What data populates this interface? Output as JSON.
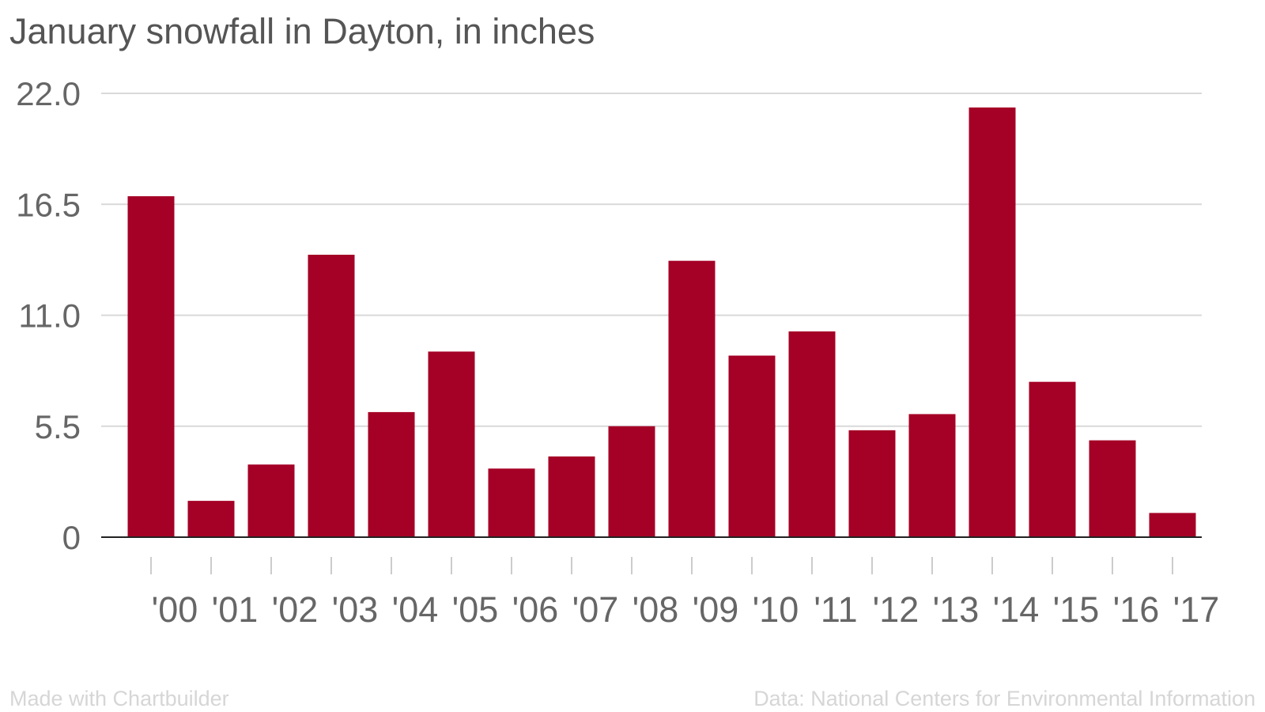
{
  "chart_data": {
    "type": "bar",
    "title": "January snowfall in Dayton, in inches",
    "xlabel": "",
    "ylabel": "",
    "categories": [
      "'00",
      "'01",
      "'02",
      "'03",
      "'04",
      "'05",
      "'06",
      "'07",
      "'08",
      "'09",
      "'10",
      "'11",
      "'12",
      "'13",
      "'14",
      "'15",
      "'16",
      "'17"
    ],
    "values": [
      16.9,
      1.8,
      3.6,
      14.0,
      6.2,
      9.2,
      3.4,
      4.0,
      5.5,
      13.7,
      9.0,
      10.2,
      5.3,
      6.1,
      21.3,
      7.7,
      4.8,
      1.2
    ],
    "ylim": [
      0,
      22.0
    ],
    "yticks": [
      "0",
      "5.5",
      "11.0",
      "16.5",
      "22.0"
    ],
    "grid": true,
    "bar_color": "#a50026"
  },
  "footer": {
    "credit": "Made with Chartbuilder",
    "source": "Data: National Centers for Environmental Information"
  }
}
